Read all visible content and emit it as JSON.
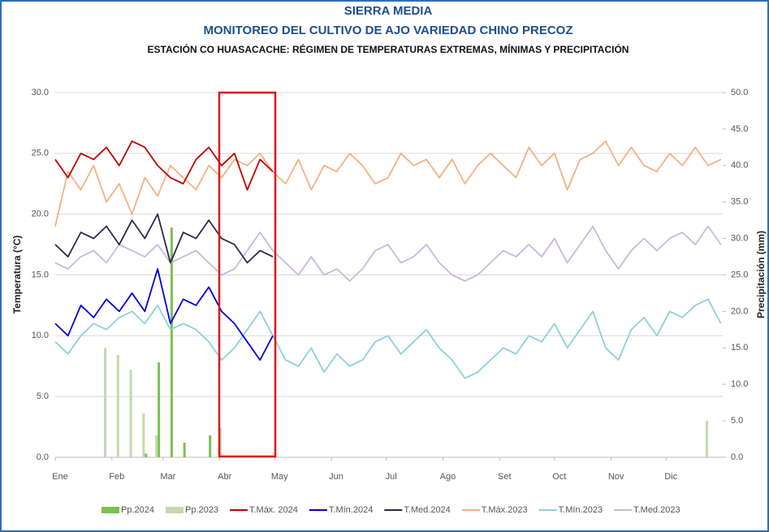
{
  "chart_data": {
    "type": "combo",
    "title": "SIERRA MEDIA",
    "subtitle": "MONITOREO DEL CULTIVO DE AJO VARIEDAD CHINO PRECOZ",
    "subtitle2": "ESTACIÓN CO HUASACACHE: RÉGIMEN DE TEMPERATURAS EXTREMAS, MÍNIMAS Y PRECIPITACIÓN",
    "y_label": "Temperatura (°C)",
    "y2_label": "Precipitación (mm)",
    "grid": true,
    "xlim": [
      1,
      366
    ],
    "xticks": [
      {
        "value": 1,
        "label": "Ene"
      },
      {
        "value": 32,
        "label": "Feb"
      },
      {
        "value": 60,
        "label": "Mar"
      },
      {
        "value": 91,
        "label": "Abr"
      },
      {
        "value": 121,
        "label": "May"
      },
      {
        "value": 152,
        "label": "Jun"
      },
      {
        "value": 182,
        "label": "Jul"
      },
      {
        "value": 213,
        "label": "Ago"
      },
      {
        "value": 244,
        "label": "Set"
      },
      {
        "value": 274,
        "label": "Oct"
      },
      {
        "value": 305,
        "label": "Nov"
      },
      {
        "value": 335,
        "label": "Dic"
      }
    ],
    "ylim": [
      0,
      30
    ],
    "yticks": [
      {
        "value": 0,
        "label": "0.0"
      },
      {
        "value": 5,
        "label": "5.0"
      },
      {
        "value": 10,
        "label": "10.0"
      },
      {
        "value": 15,
        "label": "15.0"
      },
      {
        "value": 20,
        "label": "20.0"
      },
      {
        "value": 25,
        "label": "25.0"
      },
      {
        "value": 30,
        "label": "30.0"
      }
    ],
    "y2lim": [
      0,
      50
    ],
    "y2ticks": [
      {
        "value": 0,
        "label": "0.0"
      },
      {
        "value": 5,
        "label": "5.0"
      },
      {
        "value": 10,
        "label": "10.0"
      },
      {
        "value": 15,
        "label": "15.0"
      },
      {
        "value": 20,
        "label": "20.0"
      },
      {
        "value": 25,
        "label": "25.0"
      },
      {
        "value": 30,
        "label": "30.0"
      },
      {
        "value": 35,
        "label": "35.0"
      },
      {
        "value": 40,
        "label": "40.0"
      },
      {
        "value": 45,
        "label": "45.0"
      },
      {
        "value": 50,
        "label": "50.0"
      }
    ],
    "x": [
      1,
      8,
      15,
      22,
      29,
      36,
      43,
      50,
      57,
      64,
      71,
      78,
      85,
      92,
      99,
      106,
      113,
      120,
      127,
      134,
      141,
      148,
      155,
      162,
      169,
      176,
      183,
      190,
      197,
      204,
      211,
      218,
      225,
      232,
      239,
      246,
      253,
      260,
      267,
      274,
      281,
      288,
      295,
      302,
      309,
      316,
      323,
      330,
      337,
      344,
      351,
      358,
      365
    ],
    "series": [
      {
        "name": "Pp.2024",
        "type": "bar",
        "axis": "y2",
        "color": "#7cc04f",
        "values": [
          0,
          0,
          0,
          0,
          0,
          0,
          0,
          0.5,
          13,
          31.5,
          2,
          0,
          3,
          0,
          0,
          0,
          0,
          0,
          0,
          0,
          0,
          0,
          0,
          0,
          0,
          0,
          0,
          0,
          0,
          0,
          0,
          0,
          0,
          0,
          0,
          0,
          0,
          0,
          0,
          0,
          0,
          0,
          0,
          0,
          0,
          0,
          0,
          0,
          0,
          0,
          0,
          0,
          0
        ]
      },
      {
        "name": "Pp.2023",
        "type": "bar",
        "axis": "y2",
        "color": "#c5d8b0",
        "values": [
          0,
          0,
          0,
          0,
          15,
          14,
          12,
          6,
          3,
          0,
          0,
          0,
          0,
          4,
          0,
          0,
          0,
          0,
          0,
          0,
          0,
          0,
          0,
          0,
          0,
          0,
          0,
          0,
          0,
          0,
          0,
          0,
          0,
          0,
          0,
          0,
          0,
          0,
          0,
          0,
          0,
          0,
          0,
          0,
          0,
          0,
          0,
          0,
          0,
          0,
          0,
          5,
          0
        ]
      },
      {
        "name": "T.Máx. 2024",
        "type": "line",
        "color": "#c00000",
        "values": [
          24.5,
          23.0,
          25.0,
          24.5,
          25.5,
          24.0,
          26.0,
          25.5,
          24.0,
          23.0,
          22.5,
          24.5,
          25.5,
          24.0,
          25.0,
          22.0,
          24.5,
          23.5,
          null,
          null,
          null,
          null,
          null,
          null,
          null,
          null,
          null,
          null,
          null,
          null,
          null,
          null,
          null,
          null,
          null,
          null,
          null,
          null,
          null,
          null,
          null,
          null,
          null,
          null,
          null,
          null,
          null,
          null,
          null,
          null,
          null,
          null,
          null
        ]
      },
      {
        "name": "T.Mín.2024",
        "type": "line",
        "color": "#0000e0",
        "values": [
          11.0,
          10.0,
          12.5,
          11.5,
          13.0,
          12.0,
          13.5,
          12.0,
          15.5,
          11.0,
          13.0,
          12.5,
          14.0,
          12.0,
          11.0,
          9.5,
          8.0,
          10.0,
          null,
          null,
          null,
          null,
          null,
          null,
          null,
          null,
          null,
          null,
          null,
          null,
          null,
          null,
          null,
          null,
          null,
          null,
          null,
          null,
          null,
          null,
          null,
          null,
          null,
          null,
          null,
          null,
          null,
          null,
          null,
          null,
          null,
          null,
          null
        ]
      },
      {
        "name": "T.Med.2024",
        "type": "line",
        "color": "#2e2a4a",
        "values": [
          17.5,
          16.5,
          18.5,
          18.0,
          19.0,
          17.5,
          19.5,
          18.0,
          20.0,
          16.0,
          18.5,
          18.0,
          19.5,
          18.0,
          17.5,
          16.0,
          17.0,
          16.5,
          null,
          null,
          null,
          null,
          null,
          null,
          null,
          null,
          null,
          null,
          null,
          null,
          null,
          null,
          null,
          null,
          null,
          null,
          null,
          null,
          null,
          null,
          null,
          null,
          null,
          null,
          null,
          null,
          null,
          null,
          null,
          null,
          null,
          null,
          null
        ]
      },
      {
        "name": "T.Máx.2023",
        "type": "line",
        "color": "#f4b183",
        "values": [
          19.0,
          23.5,
          22.0,
          24.0,
          21.0,
          22.5,
          20.0,
          23.0,
          21.5,
          24.0,
          23.0,
          22.0,
          24.0,
          23.0,
          24.5,
          24.0,
          25.0,
          23.5,
          22.5,
          24.5,
          22.0,
          24.0,
          23.5,
          25.0,
          24.0,
          22.5,
          23.0,
          25.0,
          24.0,
          24.5,
          23.0,
          24.5,
          22.5,
          24.0,
          25.0,
          24.0,
          23.0,
          25.5,
          24.0,
          25.0,
          22.0,
          24.5,
          25.0,
          26.0,
          24.0,
          25.5,
          24.0,
          23.5,
          25.0,
          24.0,
          25.5,
          24.0,
          24.5
        ]
      },
      {
        "name": "T.Mín.2023",
        "type": "line",
        "color": "#8fcfdc",
        "values": [
          9.5,
          8.5,
          10.0,
          11.0,
          10.5,
          11.5,
          12.0,
          11.0,
          12.5,
          10.5,
          11.0,
          10.5,
          9.5,
          8.0,
          9.0,
          10.5,
          12.0,
          10.0,
          8.0,
          7.5,
          9.0,
          7.0,
          8.5,
          7.5,
          8.0,
          9.5,
          10.0,
          8.5,
          9.5,
          10.5,
          9.0,
          8.0,
          6.5,
          7.0,
          8.0,
          9.0,
          8.5,
          10.0,
          9.5,
          11.0,
          9.0,
          10.5,
          12.0,
          9.0,
          8.0,
          10.5,
          11.5,
          10.0,
          12.0,
          11.5,
          12.5,
          13.0,
          11.0
        ]
      },
      {
        "name": "T.Med.2023",
        "type": "line",
        "color": "#c9b8dd",
        "values": [
          16.0,
          15.5,
          16.5,
          17.0,
          16.0,
          17.5,
          17.0,
          16.5,
          17.5,
          16.0,
          16.5,
          17.0,
          16.0,
          15.0,
          15.5,
          17.0,
          18.5,
          17.0,
          16.0,
          15.0,
          16.5,
          15.0,
          15.5,
          14.5,
          15.5,
          17.0,
          17.5,
          16.0,
          16.5,
          17.5,
          16.0,
          15.0,
          14.5,
          15.0,
          16.0,
          17.0,
          16.5,
          17.5,
          16.5,
          18.0,
          16.0,
          17.5,
          19.0,
          17.0,
          15.5,
          17.0,
          18.0,
          17.0,
          18.0,
          18.5,
          17.5,
          19.0,
          17.5
        ]
      }
    ]
  }
}
